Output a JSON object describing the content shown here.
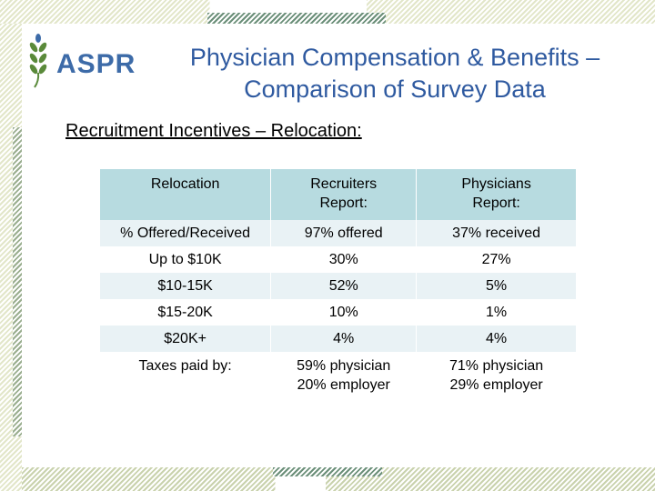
{
  "logo": {
    "text": "ASPR"
  },
  "title": {
    "line1": "Physician Compensation & Benefits –",
    "line2": "Comparison of Survey Data"
  },
  "subtitle": "Recruitment Incentives – Relocation:",
  "table": {
    "headers": [
      {
        "line1": "Relocation",
        "line2": ""
      },
      {
        "line1": "Recruiters",
        "line2": "Report:"
      },
      {
        "line1": "Physicians",
        "line2": "Report:"
      }
    ],
    "rows": [
      [
        "% Offered/Received",
        "97% offered",
        "37% received"
      ],
      [
        "Up to $10K",
        "30%",
        "27%"
      ],
      [
        "$10-15K",
        "52%",
        "5%"
      ],
      [
        "$15-20K",
        "10%",
        "1%"
      ],
      [
        "$20K+",
        "4%",
        "4%"
      ]
    ],
    "taxes_row": {
      "label": "Taxes paid by:",
      "recruiters": {
        "line1": "59% physician",
        "line2": "20% employer"
      },
      "physicians": {
        "line1": "71% physician",
        "line2": "29% employer"
      }
    }
  },
  "colors": {
    "header_bg": "#b7dbe0",
    "alt_row_bg": "#e9f2f5",
    "title_blue": "#2f5aa0",
    "logo_blue": "#3d6ba8",
    "logo_green": "#5a8a3a"
  }
}
